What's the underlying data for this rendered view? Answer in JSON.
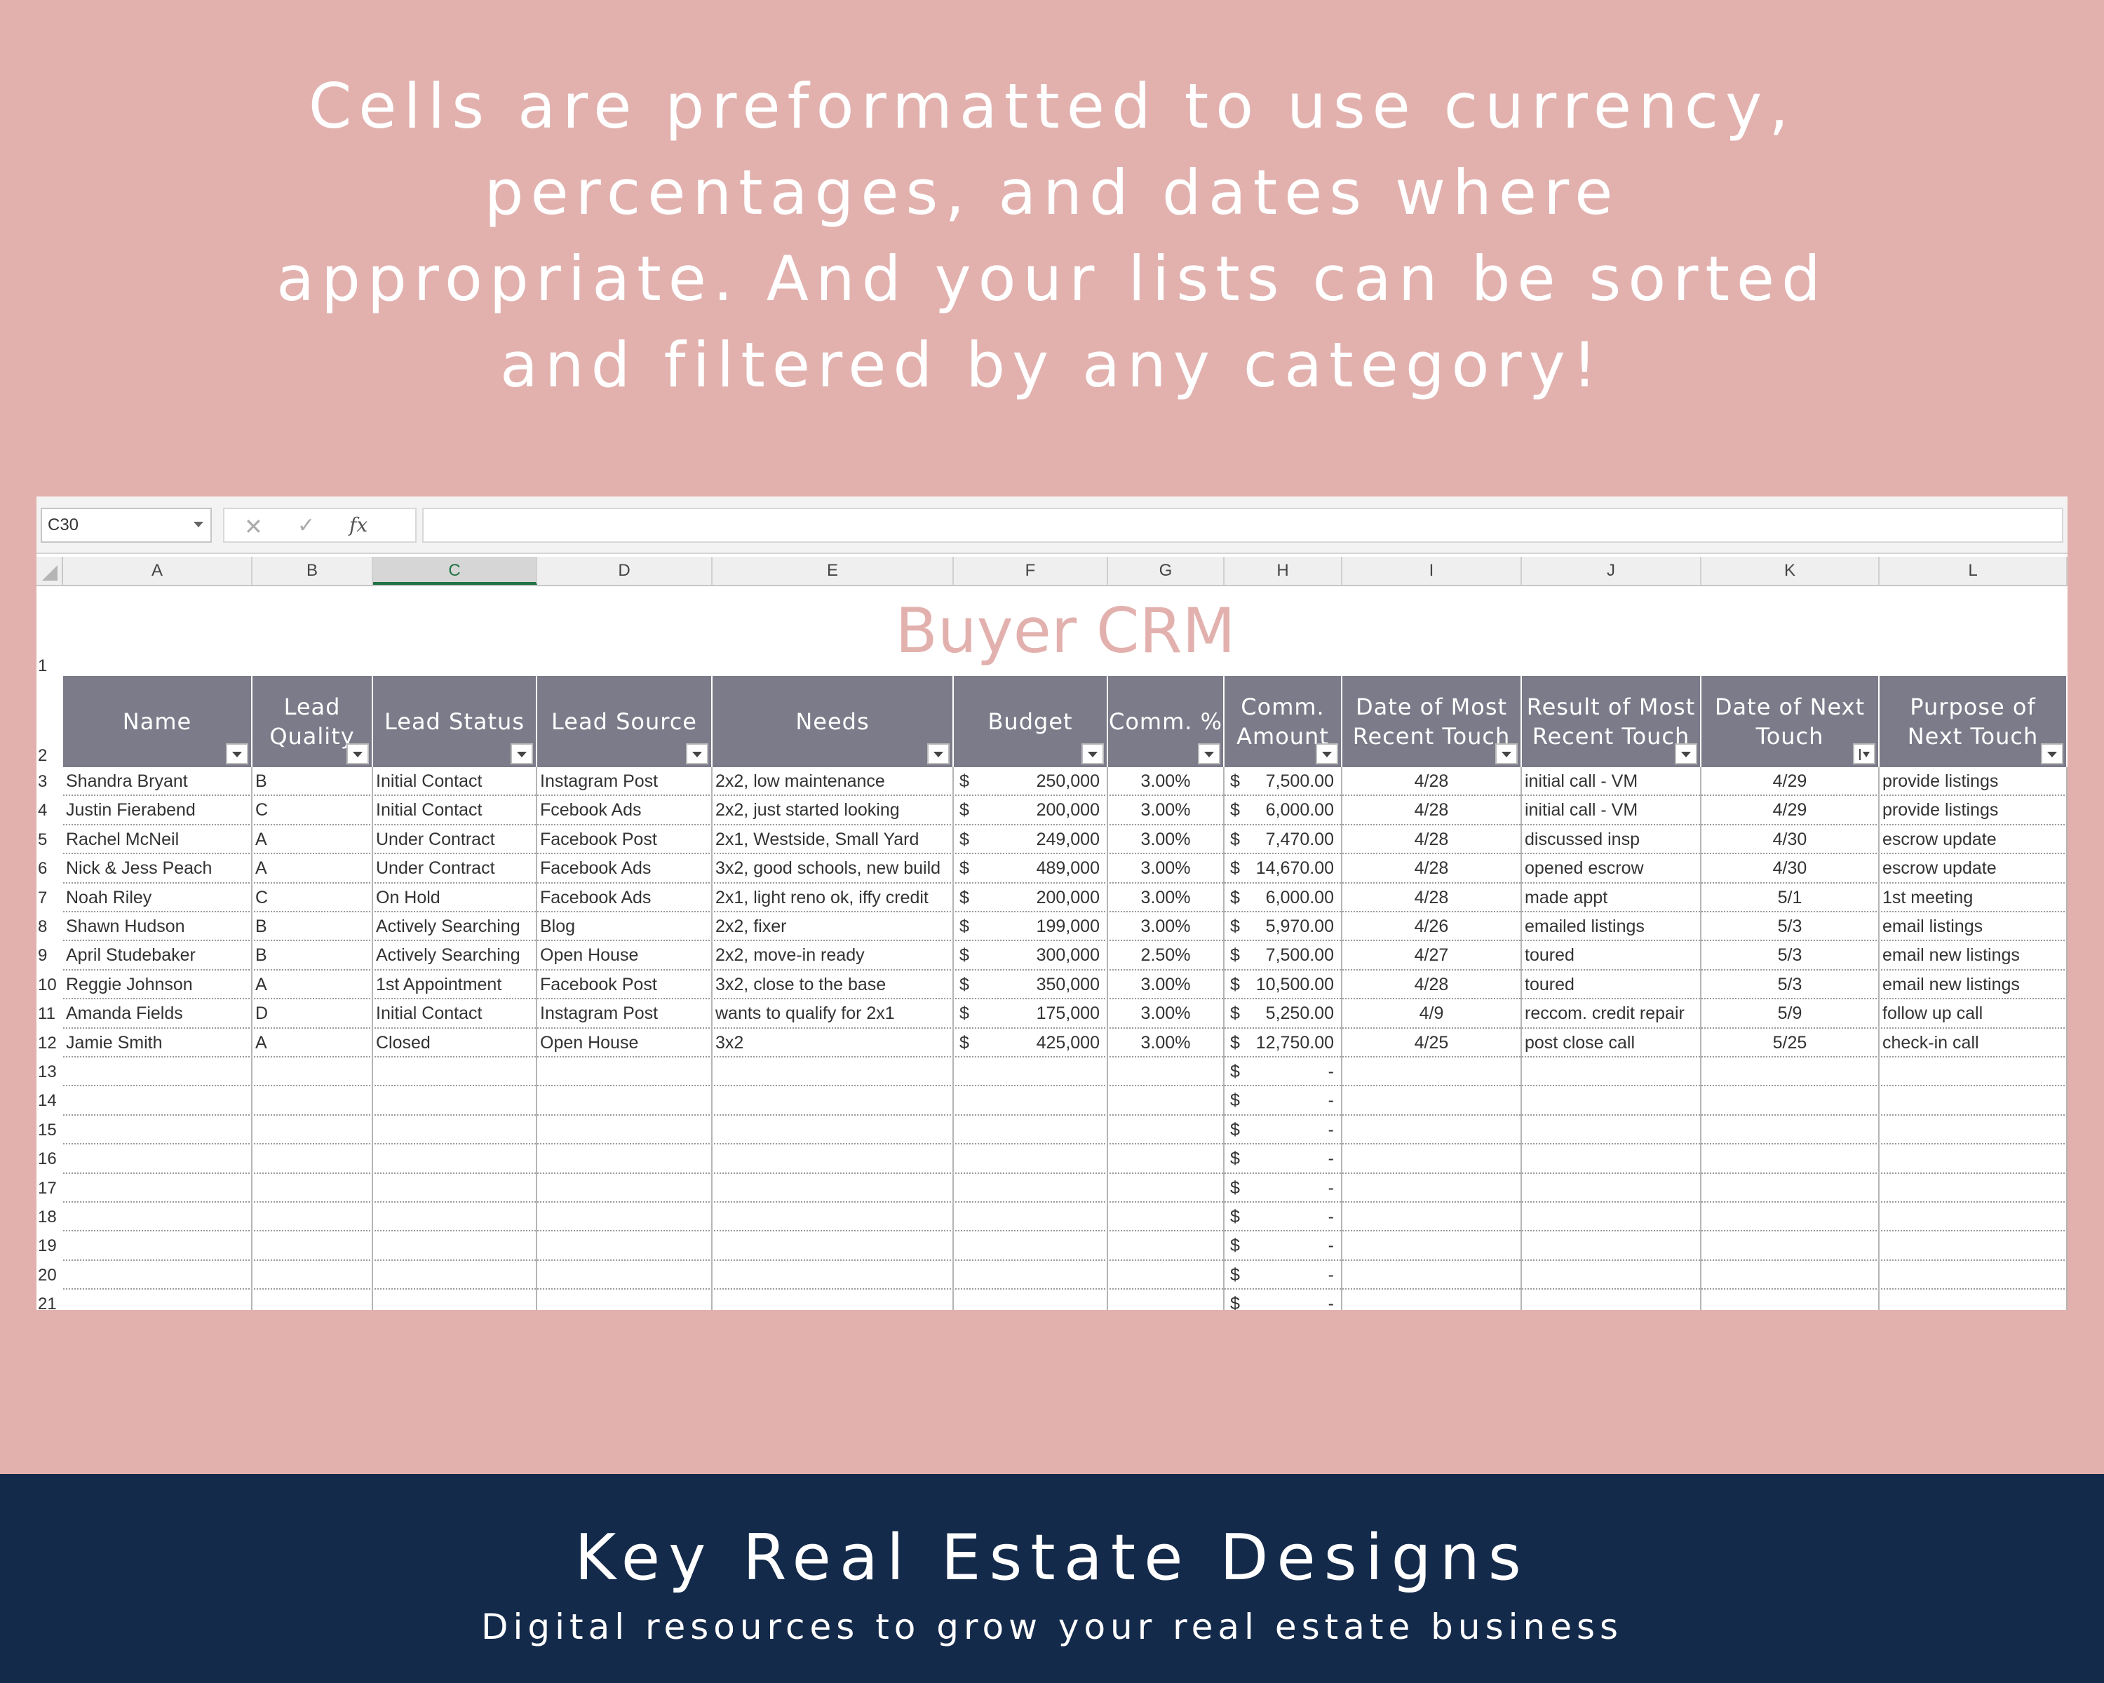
{
  "headline": {
    "lines": [
      "Cells are preformatted to use currency,",
      "percentages, and dates where",
      "appropriate. And your lists can be sorted",
      "and filtered by any category!"
    ]
  },
  "formula_bar": {
    "name_box": "C30",
    "separator": "⋮",
    "cancel_icon": "✕",
    "enter_icon": "✓",
    "fx_label": "fx",
    "formula": ""
  },
  "columns": [
    "A",
    "B",
    "C",
    "D",
    "E",
    "F",
    "G",
    "H",
    "I",
    "J",
    "K",
    "L"
  ],
  "selected_column": "C",
  "title": "Buyer CRM",
  "headers": [
    {
      "lines": [
        "Name"
      ]
    },
    {
      "lines": [
        "Lead",
        "Quality"
      ]
    },
    {
      "lines": [
        "Lead Status"
      ]
    },
    {
      "lines": [
        "Lead Source"
      ]
    },
    {
      "lines": [
        "Needs"
      ]
    },
    {
      "lines": [
        "Budget"
      ]
    },
    {
      "lines": [
        "Comm. %"
      ]
    },
    {
      "lines": [
        "Comm.",
        "Amount"
      ]
    },
    {
      "lines": [
        "Date of Most",
        "Recent Touch"
      ]
    },
    {
      "lines": [
        "Result of Most",
        "Recent Touch"
      ]
    },
    {
      "lines": [
        "Date of Next",
        "Touch"
      ]
    },
    {
      "lines": [
        "Purpose of",
        "Next Touch"
      ]
    }
  ],
  "sorted_header_index": 10,
  "row_numbers": [
    "1",
    "2",
    "3",
    "4",
    "5",
    "6",
    "7",
    "8",
    "9",
    "10",
    "11",
    "12",
    "13",
    "14",
    "15",
    "16",
    "17",
    "18",
    "19",
    "20",
    "21"
  ],
  "currency_symbol": "$",
  "empty_amount": "-",
  "rows": [
    {
      "name": "Shandra Bryant",
      "quality": "B",
      "status": "Initial Contact",
      "source": "Instagram Post",
      "needs": "2x2, low maintenance",
      "budget": "250,000",
      "comm_pct": "3.00%",
      "comm_amt": "7,500.00",
      "last_date": "4/28",
      "result": "initial call - VM",
      "next_date": "4/29",
      "purpose": "provide listings"
    },
    {
      "name": "Justin Fierabend",
      "quality": "C",
      "status": "Initial Contact",
      "source": "Fcebook Ads",
      "needs": "2x2, just started looking",
      "budget": "200,000",
      "comm_pct": "3.00%",
      "comm_amt": "6,000.00",
      "last_date": "4/28",
      "result": "initial call - VM",
      "next_date": "4/29",
      "purpose": "provide listings"
    },
    {
      "name": "Rachel McNeil",
      "quality": "A",
      "status": "Under Contract",
      "source": "Facebook Post",
      "needs": "2x1, Westside, Small Yard",
      "budget": "249,000",
      "comm_pct": "3.00%",
      "comm_amt": "7,470.00",
      "last_date": "4/28",
      "result": "discussed insp",
      "next_date": "4/30",
      "purpose": "escrow update"
    },
    {
      "name": "Nick & Jess Peach",
      "quality": "A",
      "status": "Under Contract",
      "source": "Facebook Ads",
      "needs": "3x2, good schools, new build",
      "budget": "489,000",
      "comm_pct": "3.00%",
      "comm_amt": "14,670.00",
      "last_date": "4/28",
      "result": "opened escrow",
      "next_date": "4/30",
      "purpose": "escrow update"
    },
    {
      "name": "Noah Riley",
      "quality": "C",
      "status": "On Hold",
      "source": "Facebook Ads",
      "needs": "2x1, light reno ok, iffy credit",
      "budget": "200,000",
      "comm_pct": "3.00%",
      "comm_amt": "6,000.00",
      "last_date": "4/28",
      "result": "made appt",
      "next_date": "5/1",
      "purpose": "1st meeting"
    },
    {
      "name": "Shawn Hudson",
      "quality": "B",
      "status": "Actively Searching",
      "source": "Blog",
      "needs": "2x2, fixer",
      "budget": "199,000",
      "comm_pct": "3.00%",
      "comm_amt": "5,970.00",
      "last_date": "4/26",
      "result": "emailed listings",
      "next_date": "5/3",
      "purpose": "email listings"
    },
    {
      "name": "April Studebaker",
      "quality": "B",
      "status": "Actively Searching",
      "source": "Open House",
      "needs": "2x2, move-in ready",
      "budget": "300,000",
      "comm_pct": "2.50%",
      "comm_amt": "7,500.00",
      "last_date": "4/27",
      "result": "toured",
      "next_date": "5/3",
      "purpose": "email new listings"
    },
    {
      "name": "Reggie Johnson",
      "quality": "A",
      "status": "1st Appointment",
      "source": "Facebook Post",
      "needs": "3x2, close to the base",
      "budget": "350,000",
      "comm_pct": "3.00%",
      "comm_amt": "10,500.00",
      "last_date": "4/28",
      "result": "toured",
      "next_date": "5/3",
      "purpose": "email new listings"
    },
    {
      "name": "Amanda Fields",
      "quality": "D",
      "status": "Initial Contact",
      "source": "Instagram Post",
      "needs": "wants to qualify for 2x1",
      "budget": "175,000",
      "comm_pct": "3.00%",
      "comm_amt": "5,250.00",
      "last_date": "4/9",
      "result": "reccom. credit repair",
      "next_date": "5/9",
      "purpose": "follow up call"
    },
    {
      "name": "Jamie Smith",
      "quality": "A",
      "status": "Closed",
      "source": "Open House",
      "needs": "3x2",
      "budget": "425,000",
      "comm_pct": "3.00%",
      "comm_amt": "12,750.00",
      "last_date": "4/25",
      "result": "post close call",
      "next_date": "5/25",
      "purpose": "check-in call"
    }
  ],
  "empty_row_count": 9,
  "footer": {
    "brand": "Key Real Estate Designs",
    "tagline": "Digital resources to grow your real estate business"
  },
  "colors": {
    "background": "#e2b1ae",
    "header_band": "#7b7b8a",
    "footer_band": "#142a4b",
    "title": "#e2b1ae"
  }
}
